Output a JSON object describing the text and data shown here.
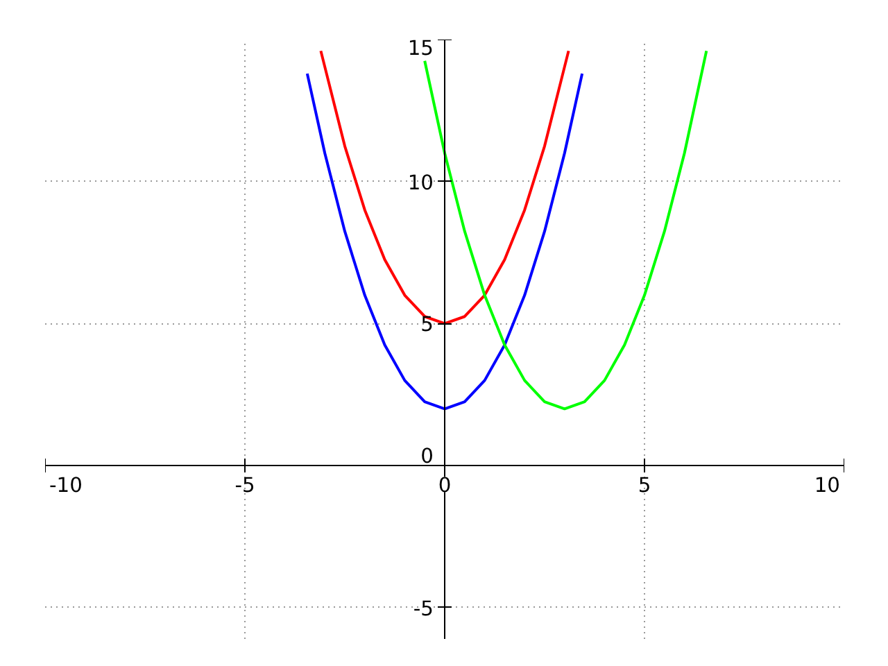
{
  "chart_data": {
    "type": "line",
    "xlim": [
      -10,
      10
    ],
    "ylim": [
      -6.1,
      15
    ],
    "xticks": [
      {
        "value": -10,
        "label": "-10"
      },
      {
        "value": -5,
        "label": "-5"
      },
      0,
      5,
      10
    ],
    "yticks": [
      {
        "value": -5,
        "label": "-5"
      },
      0,
      5,
      10,
      15
    ],
    "grid": true,
    "series": [
      {
        "color": "#0000ff",
        "x": [
          -3.44,
          -3,
          -2.5,
          -2,
          -1.5,
          -1,
          -0.5,
          0,
          0.5,
          1,
          1.5,
          2,
          2.5,
          3,
          3.44
        ],
        "values": [
          13.8,
          11,
          8.25,
          6,
          4.25,
          3,
          2.25,
          2,
          2.25,
          3,
          4.25,
          6,
          8.25,
          11,
          13.8
        ]
      },
      {
        "color": "#ff0000",
        "x": [
          -3.1,
          -2.5,
          -2,
          -1.5,
          -1,
          -0.5,
          0,
          0.5,
          1,
          1.5,
          2,
          2.5,
          3.1
        ],
        "values": [
          14.6,
          11.25,
          9,
          7.25,
          6,
          5.25,
          5,
          5.25,
          6,
          7.25,
          9,
          11.25,
          14.6
        ]
      },
      {
        "color": "#00ff00",
        "x": [
          -0.5,
          0,
          0.5,
          1,
          1.5,
          2,
          2.5,
          3,
          3.5,
          4,
          4.5,
          5,
          5.5,
          6,
          6.55
        ],
        "values": [
          14.25,
          11,
          8.25,
          6,
          4.25,
          3,
          2.25,
          2,
          2.25,
          3,
          4.25,
          6,
          8.25,
          11,
          14.6
        ]
      }
    ]
  }
}
